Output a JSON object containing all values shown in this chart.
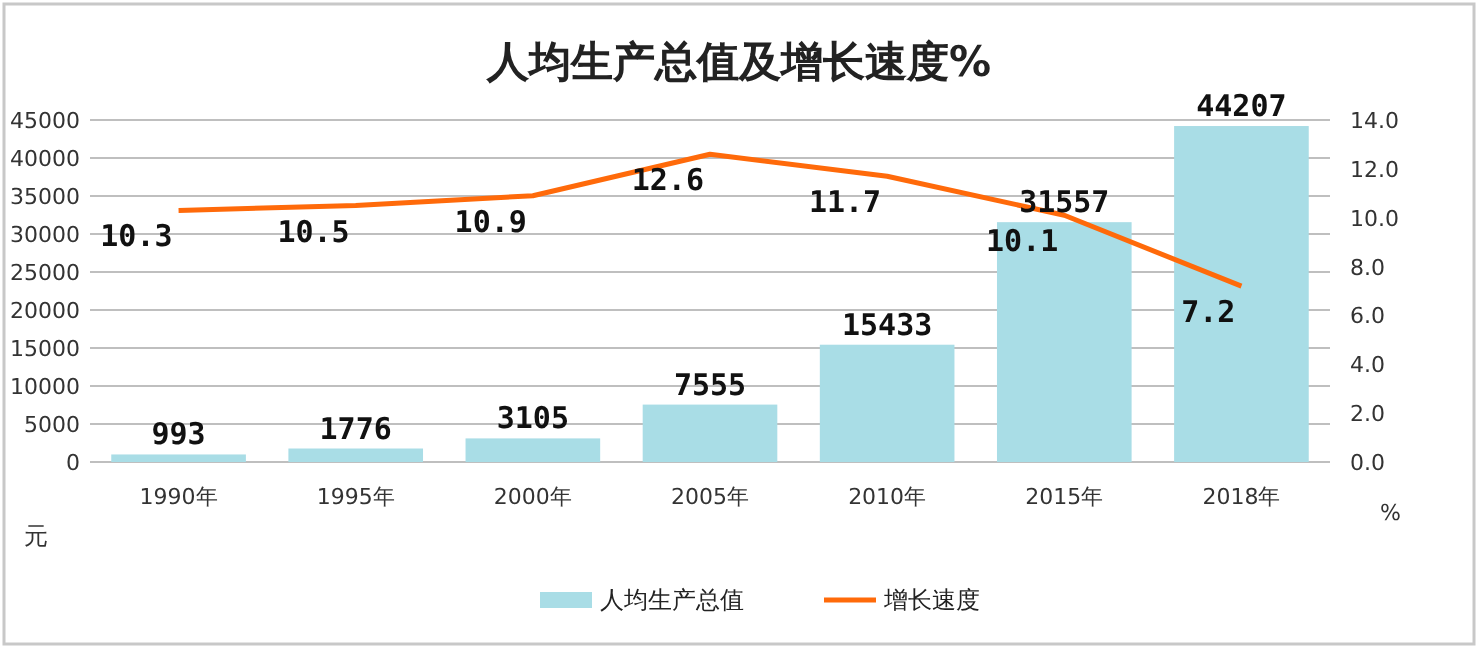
{
  "chart_data": {
    "type": "bar",
    "title": "人均生产总值及增长速度%",
    "categories": [
      "1990年",
      "1995年",
      "2000年",
      "2005年",
      "2010年",
      "2015年",
      "2018年"
    ],
    "series": [
      {
        "name": "人均生产总值",
        "color": "#a9dde6",
        "values": [
          993,
          1776,
          3105,
          7555,
          15433,
          31557,
          44207
        ]
      },
      {
        "name": "增长速度",
        "type": "line",
        "axis": "y2",
        "color": "#ff6a0a",
        "values": [
          10.3,
          10.5,
          10.9,
          12.6,
          11.7,
          10.1,
          7.2
        ]
      }
    ],
    "ylim": [
      0,
      45000
    ],
    "yticks": [
      0,
      5000,
      10000,
      15000,
      20000,
      25000,
      30000,
      35000,
      40000,
      45000
    ],
    "y2lim": [
      0,
      14
    ],
    "y2ticks": [
      {
        "value": 0,
        "label": "0.0"
      },
      {
        "value": 2,
        "label": "2.0"
      },
      {
        "value": 4,
        "label": "4.0"
      },
      {
        "value": 6,
        "label": "6.0"
      },
      {
        "value": 8,
        "label": "8.0"
      },
      {
        "value": 10,
        "label": "10.0"
      },
      {
        "value": 12,
        "label": "12.0"
      },
      {
        "value": 14,
        "label": "14.0"
      }
    ],
    "ylabel": "元",
    "y2label": "%",
    "grid": "y",
    "legend": "bottom",
    "data_labels": true,
    "marker": "none",
    "line_style": "solid"
  }
}
